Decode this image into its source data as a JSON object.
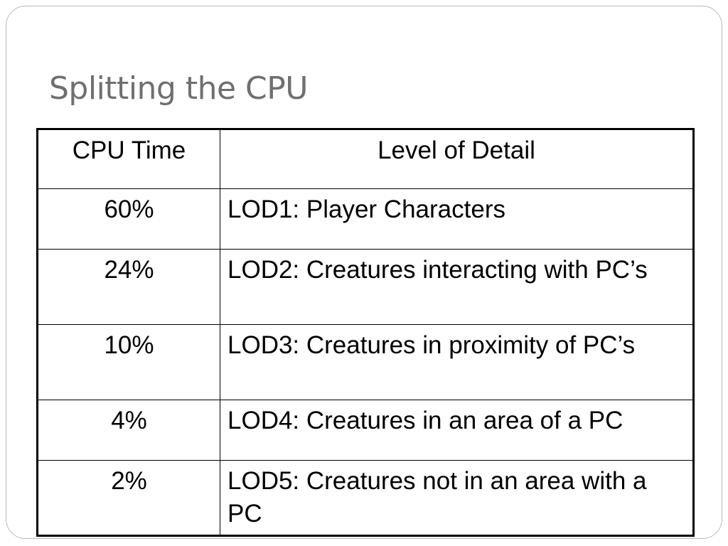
{
  "slide": {
    "title": "Splitting the CPU"
  },
  "table": {
    "headers": {
      "cpu_time": "CPU Time",
      "level_of_detail": "Level of Detail"
    },
    "rows": [
      {
        "cpu": "60%",
        "lod": "LOD1: Player Characters"
      },
      {
        "cpu": "24%",
        "lod": "LOD2: Creatures interacting with PC’s"
      },
      {
        "cpu": "10%",
        "lod": "LOD3: Creatures in proximity of PC’s"
      },
      {
        "cpu": "4%",
        "lod": "LOD4: Creatures in an area of a PC"
      },
      {
        "cpu": "2%",
        "lod": "LOD5: Creatures not in an area with a PC"
      }
    ]
  }
}
